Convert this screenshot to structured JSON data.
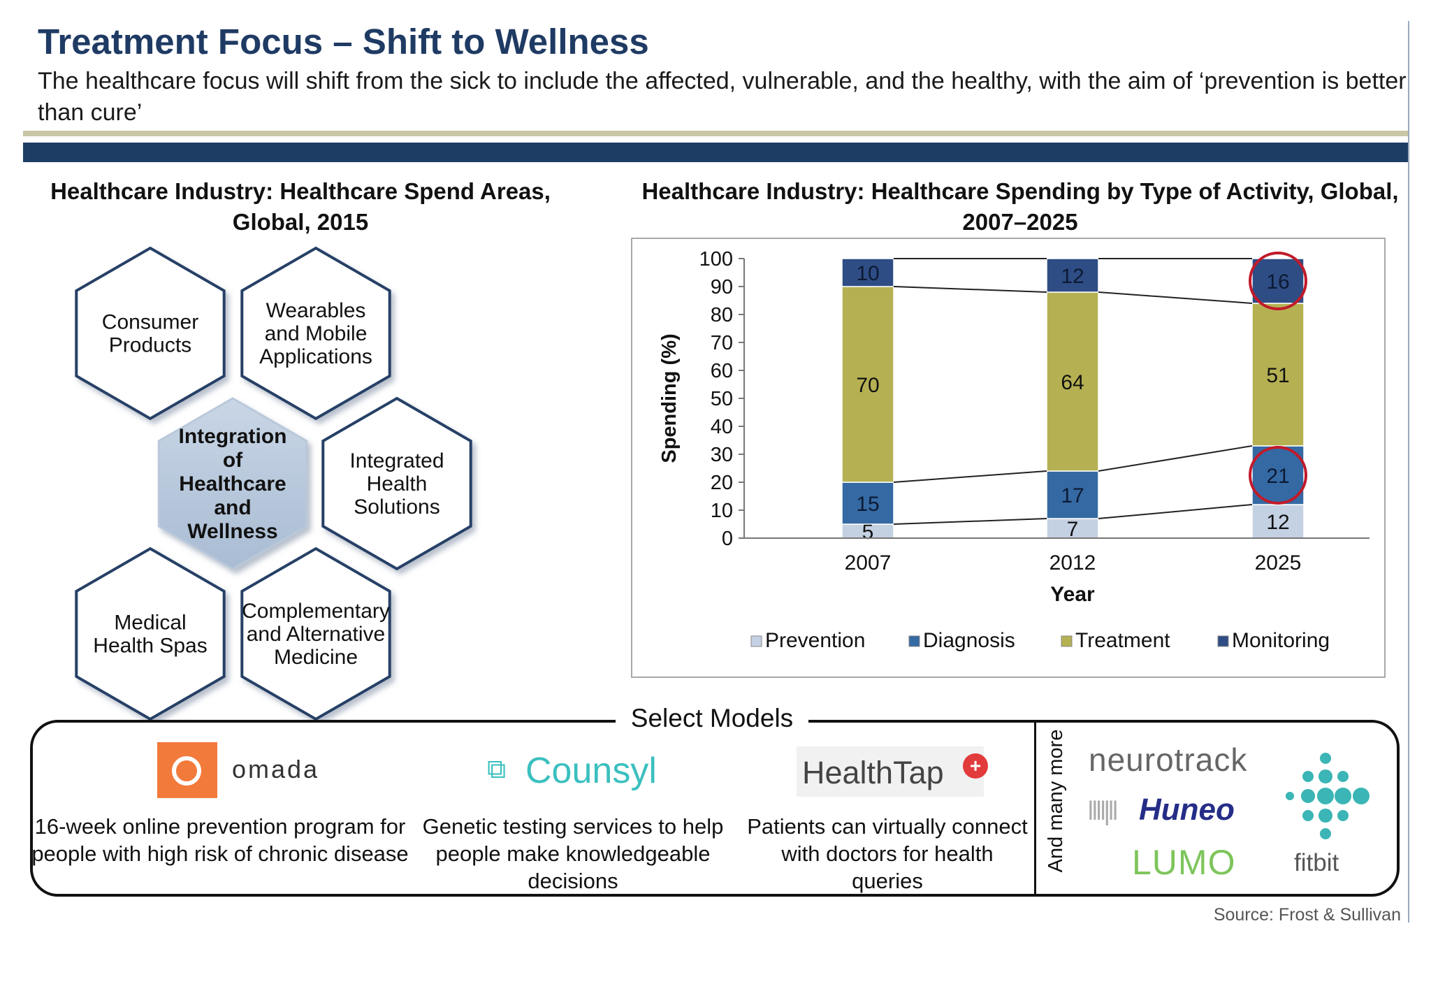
{
  "header": {
    "title": "Treatment Focus – Shift to Wellness",
    "subtitle": "The healthcare focus will shift from the sick to include the affected, vulnerable, and the healthy, with the aim of ‘prevention is better than cure’"
  },
  "left_chart": {
    "title": "Healthcare Industry: Healthcare Spend Areas, Global, 2015",
    "hexagons": [
      {
        "label": "Consumer Products"
      },
      {
        "label": "Wearables and Mobile Applications"
      },
      {
        "label": "Integration of Healthcare and Wellness",
        "highlight": true
      },
      {
        "label": "Integrated Health Solutions"
      },
      {
        "label": "Medical Health Spas"
      },
      {
        "label": "Complementary and Alternative Medicine"
      }
    ]
  },
  "chart_data": {
    "type": "bar",
    "stacked": true,
    "title": "Healthcare Industry: Healthcare Spending by Type of Activity, Global, 2007–2025",
    "xlabel": "Year",
    "ylabel": "Spending (%)",
    "ylim": [
      0,
      100
    ],
    "yticks": [
      0,
      10,
      20,
      30,
      40,
      50,
      60,
      70,
      80,
      90,
      100
    ],
    "categories": [
      "2007",
      "2012",
      "2025"
    ],
    "series": [
      {
        "name": "Prevention",
        "values": [
          5,
          7,
          12
        ],
        "color": "#c4d1e3"
      },
      {
        "name": "Diagnosis",
        "values": [
          15,
          17,
          21
        ],
        "color": "#3569a3"
      },
      {
        "name": "Treatment",
        "values": [
          70,
          64,
          51
        ],
        "color": "#b5b153"
      },
      {
        "name": "Monitoring",
        "values": [
          10,
          12,
          16
        ],
        "color": "#2f4d85"
      }
    ],
    "highlighted": [
      {
        "series": "Monitoring",
        "category": "2025"
      },
      {
        "series": "Diagnosis",
        "category": "2025"
      }
    ],
    "legend_position": "bottom",
    "grid": false
  },
  "models": {
    "title": "Select Models",
    "items": [
      {
        "logo": "omada",
        "description": "16-week online prevention program for people with high risk of chronic disease"
      },
      {
        "logo": "Counsyl",
        "description": "Genetic testing services to help people make knowledgeable decisions"
      },
      {
        "logo": "HealthTap",
        "description": "Patients can virtually connect with doctors for health queries"
      }
    ],
    "many_more_label": "And many more",
    "more_logos": {
      "neurotrack": "neurotrack",
      "huneo": "Huneo",
      "lumo": "LUMO",
      "fitbit": "fitbit"
    }
  },
  "source": "Source: Frost & Sullivan"
}
